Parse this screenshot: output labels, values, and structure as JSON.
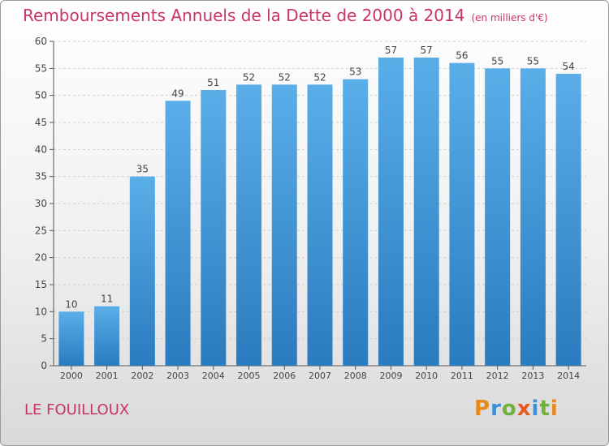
{
  "chart_data": {
    "type": "bar",
    "title": "Remboursements Annuels de la Dette de 2000 à 2014",
    "unit": "(en milliers d'€)",
    "categories": [
      "2000",
      "2001",
      "2002",
      "2003",
      "2004",
      "2005",
      "2006",
      "2007",
      "2008",
      "2009",
      "2010",
      "2011",
      "2012",
      "2013",
      "2014"
    ],
    "values": [
      10,
      11,
      35,
      49,
      51,
      52,
      52,
      52,
      53,
      57,
      57,
      56,
      55,
      55,
      54
    ],
    "ylim": [
      0,
      60
    ],
    "yticks": [
      0,
      5,
      10,
      15,
      20,
      25,
      30,
      35,
      40,
      45,
      50,
      55,
      60
    ],
    "grid": true,
    "bar_color_top": "#5aaee8",
    "bar_color_bottom": "#2a7bbf"
  },
  "footer": {
    "commune": "LE FOUILLOUX",
    "logo_letters": [
      {
        "ch": "P",
        "color": "#e8891e"
      },
      {
        "ch": "r",
        "color": "#3d8fd6"
      },
      {
        "ch": "o",
        "color": "#6fb23a"
      },
      {
        "ch": "x",
        "color": "#e85a1e"
      },
      {
        "ch": "i",
        "color": "#3d8fd6"
      },
      {
        "ch": "t",
        "color": "#6fb23a"
      },
      {
        "ch": "i",
        "color": "#e8891e"
      }
    ]
  }
}
